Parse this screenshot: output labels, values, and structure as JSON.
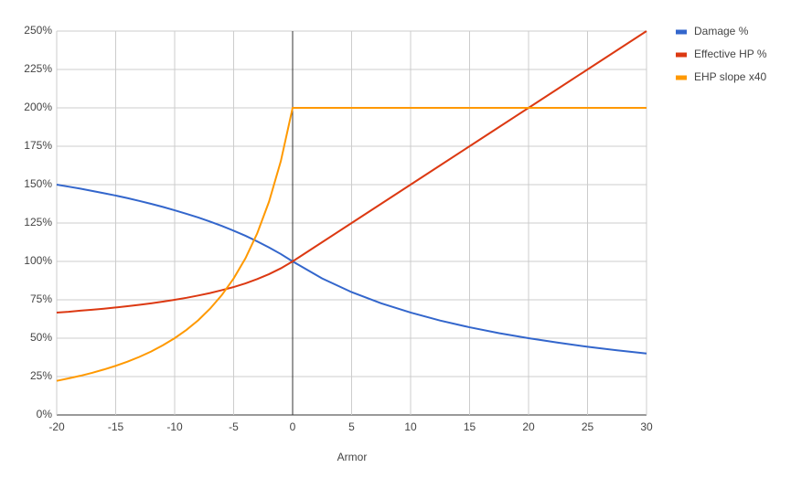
{
  "chart_data": {
    "type": "line",
    "x_label": "Armor",
    "x": [
      -20,
      -19,
      -18,
      -17,
      -16,
      -15,
      -14,
      -13,
      -12,
      -11,
      -10,
      -9,
      -8,
      -7,
      -6,
      -5,
      -4,
      -3,
      -2,
      -1,
      0,
      2.5,
      5,
      7.5,
      10,
      12.5,
      15,
      17.5,
      20,
      22.5,
      25,
      27.5,
      30
    ],
    "series": [
      {
        "name": "Damage %",
        "color": "#3366cc",
        "values": [
          150,
          148.7,
          147.4,
          145.9,
          144.4,
          142.9,
          141.2,
          139.4,
          137.5,
          135.5,
          133.3,
          131.0,
          128.6,
          125.9,
          123.1,
          120,
          116.7,
          113.0,
          109.1,
          104.8,
          100,
          88.9,
          80,
          72.7,
          66.7,
          61.5,
          57.1,
          53.3,
          50,
          47.1,
          44.4,
          42.1,
          40
        ]
      },
      {
        "name": "Effective HP %",
        "color": "#dc3912",
        "values": [
          66.7,
          67.2,
          67.9,
          68.5,
          69.2,
          70,
          70.8,
          71.7,
          72.7,
          73.8,
          75,
          76.3,
          77.8,
          79.4,
          81.3,
          83.3,
          85.7,
          88.5,
          91.7,
          95.5,
          100,
          112.5,
          125,
          137.5,
          150,
          162.5,
          175,
          187.5,
          200,
          212.5,
          225,
          237.5,
          250
        ]
      },
      {
        "name": "EHP slope x40",
        "color": "#ff9900",
        "values": [
          22.2,
          23.8,
          25.5,
          27.4,
          29.6,
          32,
          34.7,
          37.8,
          41.3,
          45.4,
          50,
          55.4,
          61.7,
          69.2,
          78.1,
          88.9,
          102,
          118.3,
          138.9,
          165.3,
          200,
          200,
          200,
          200,
          200,
          200,
          200,
          200,
          200,
          200,
          200,
          200,
          200
        ]
      }
    ],
    "xlim": [
      -20,
      30
    ],
    "xticks": [
      -20,
      -15,
      -10,
      -5,
      0,
      5,
      10,
      15,
      20,
      25,
      30
    ],
    "ylim": [
      0,
      250
    ],
    "yticks": [
      {
        "value": 0,
        "label": "0%"
      },
      {
        "value": 25,
        "label": "25%"
      },
      {
        "value": 50,
        "label": "50%"
      },
      {
        "value": 75,
        "label": "75%"
      },
      {
        "value": 100,
        "label": "100%"
      },
      {
        "value": 125,
        "label": "125%"
      },
      {
        "value": 150,
        "label": "150%"
      },
      {
        "value": 175,
        "label": "175%"
      },
      {
        "value": 200,
        "label": "200%"
      },
      {
        "value": 225,
        "label": "225%"
      },
      {
        "value": 250,
        "label": "250%"
      }
    ],
    "grid": true,
    "legend": "right"
  }
}
